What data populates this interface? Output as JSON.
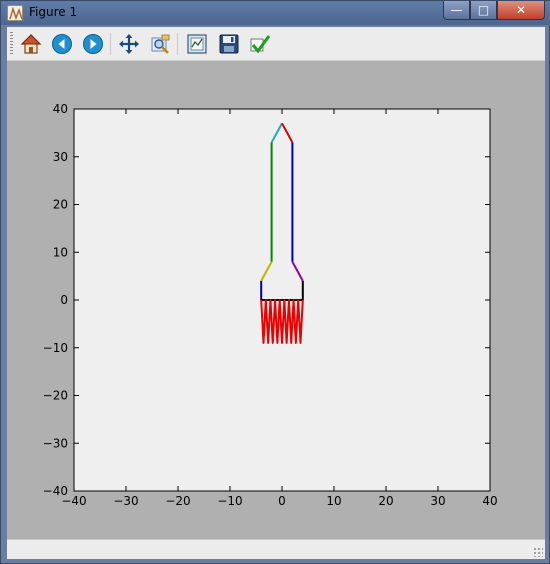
{
  "window": {
    "title": "Figure 1",
    "controls": {
      "minimize": "—",
      "maximize": "□",
      "close": "✕"
    }
  },
  "toolbar": {
    "tools": [
      {
        "name": "home-icon",
        "tip": "Reset original view"
      },
      {
        "name": "back-icon",
        "tip": "Back to previous view"
      },
      {
        "name": "forward-icon",
        "tip": "Forward to next view"
      },
      {
        "name": "pan-icon",
        "tip": "Pan axes"
      },
      {
        "name": "zoom-icon",
        "tip": "Zoom to rectangle"
      },
      {
        "name": "subplots-icon",
        "tip": "Configure subplots"
      },
      {
        "name": "save-icon",
        "tip": "Save the figure"
      },
      {
        "name": "edit-icon",
        "tip": "Edit curves line and axes parameters"
      }
    ]
  },
  "status": {
    "text": ""
  },
  "colors": {
    "axes_bg": "#efefef",
    "figure_bg": "#b0b0b0",
    "black": "#000000",
    "blue": "#0000aa",
    "green": "#008800",
    "red": "#dd0000",
    "cyan": "#22aabb",
    "olive": "#b8b800",
    "purple": "#990099",
    "flame": "#ee0000"
  },
  "chart_data": {
    "type": "line",
    "title": "",
    "xlabel": "",
    "ylabel": "",
    "xlim": [
      -40,
      40
    ],
    "ylim": [
      -40,
      40
    ],
    "xticks": [
      "−40",
      "−30",
      "−20",
      "−10",
      "0",
      "10",
      "20",
      "30",
      "40"
    ],
    "yticks": [
      "40",
      "30",
      "20",
      "10",
      "0",
      "−10",
      "−20",
      "−30",
      "−40"
    ],
    "grid": false,
    "legend": "none",
    "segments": [
      {
        "color": "cyan",
        "x": [
          -2,
          0
        ],
        "y": [
          33,
          37
        ]
      },
      {
        "color": "red",
        "x": [
          0,
          2
        ],
        "y": [
          37,
          33
        ]
      },
      {
        "color": "green",
        "x": [
          -2,
          -2
        ],
        "y": [
          8,
          33
        ]
      },
      {
        "color": "blue",
        "x": [
          2,
          2
        ],
        "y": [
          8,
          33
        ]
      },
      {
        "color": "olive",
        "x": [
          -4,
          -2
        ],
        "y": [
          4,
          8
        ]
      },
      {
        "color": "purple",
        "x": [
          2,
          4
        ],
        "y": [
          8,
          4
        ]
      },
      {
        "color": "blue",
        "x": [
          -4,
          -4
        ],
        "y": [
          0,
          4
        ]
      },
      {
        "color": "black",
        "x": [
          4,
          4
        ],
        "y": [
          0,
          4
        ]
      },
      {
        "color": "black",
        "x": [
          -4,
          4
        ],
        "y": [
          0,
          0
        ]
      }
    ],
    "flame": {
      "color": "flame",
      "x_start": -4,
      "x_end": 4,
      "y_top": 0,
      "y_bottom": -9,
      "teeth": 9
    }
  }
}
